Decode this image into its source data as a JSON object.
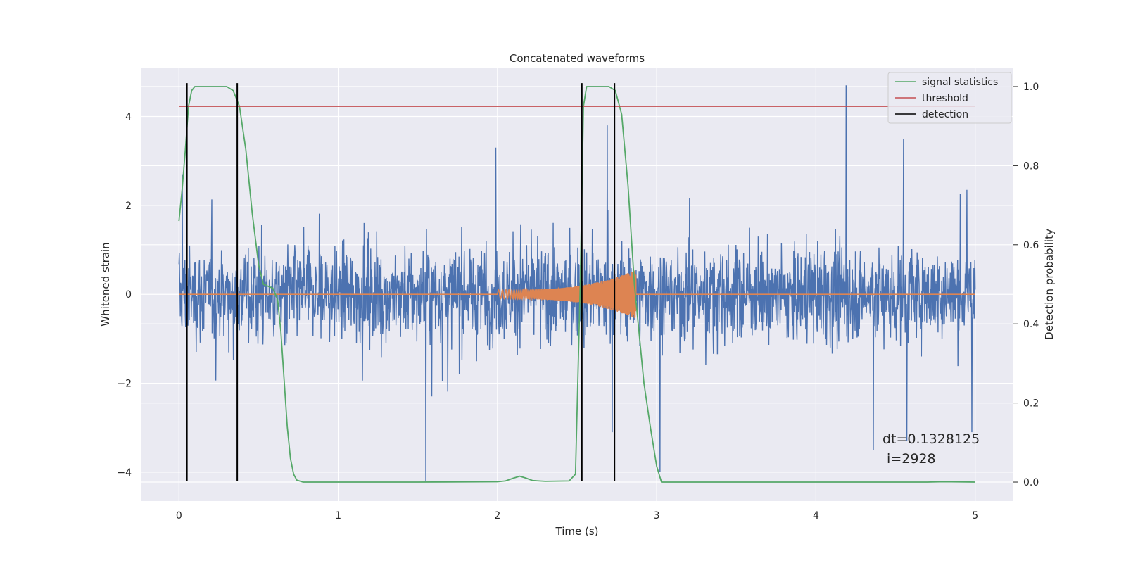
{
  "chart_data": {
    "type": "line",
    "title": "Concatenated waveforms",
    "xlabel": "Time (s)",
    "ylabel": "Whitened strain",
    "ylabel_right": "Detection probability",
    "xlim": [
      -0.24,
      5.24
    ],
    "ylim": [
      -4.65,
      5.1
    ],
    "ylim_right": [
      -0.048,
      1.048
    ],
    "x_ticks": [
      0,
      1,
      2,
      3,
      4,
      5
    ],
    "x_tick_labels": [
      "0",
      "1",
      "2",
      "3",
      "4",
      "5"
    ],
    "y_ticks": [
      -4,
      -2,
      0,
      2,
      4
    ],
    "y_tick_labels": [
      "−4",
      "−2",
      "0",
      "2",
      "4"
    ],
    "y_right_ticks": [
      0.0,
      0.2,
      0.4,
      0.6,
      0.8,
      1.0
    ],
    "y_right_tick_labels": [
      "0.0",
      "0.2",
      "0.4",
      "0.6",
      "0.8",
      "1.0"
    ],
    "grid": true,
    "legend_position": "top-right",
    "series": [
      {
        "kind": "noise",
        "axis": "left",
        "color": "#4c72b0",
        "x_range": [
          0,
          5
        ],
        "typical_range": [
          -2.4,
          2.6
        ],
        "spikes": [
          [
            0.02,
            2.7
          ],
          [
            1.55,
            -4.2
          ],
          [
            1.99,
            3.3
          ],
          [
            2.69,
            3.8
          ],
          [
            2.72,
            -3.1
          ],
          [
            3.02,
            -4.0
          ],
          [
            4.19,
            4.7
          ],
          [
            4.36,
            -3.5
          ],
          [
            4.55,
            3.5
          ],
          [
            4.57,
            -3.3
          ],
          [
            4.98,
            -3.1
          ]
        ]
      },
      {
        "kind": "chirp",
        "axis": "left",
        "color": "#dd8452",
        "x_range": [
          0,
          5
        ],
        "chirp_start": 2.0,
        "chirp_end": 2.87,
        "amplitude_start": 0.1,
        "amplitude_peak": 0.55
      },
      {
        "name": "signal statistics",
        "kind": "line",
        "axis": "right",
        "color": "#55a868",
        "x": [
          0.0,
          0.02,
          0.04,
          0.06,
          0.08,
          0.1,
          0.14,
          0.2,
          0.3,
          0.34,
          0.38,
          0.42,
          0.46,
          0.5,
          0.53,
          0.56,
          0.59,
          0.62,
          0.64,
          0.66,
          0.68,
          0.7,
          0.72,
          0.74,
          0.78,
          1.0,
          1.5,
          2.0,
          2.05,
          2.1,
          2.14,
          2.18,
          2.22,
          2.3,
          2.45,
          2.49,
          2.52,
          2.54,
          2.56,
          2.6,
          2.7,
          2.74,
          2.78,
          2.82,
          2.86,
          2.92,
          2.96,
          3.0,
          3.03,
          3.1,
          4.0,
          4.7,
          4.8,
          5.0
        ],
        "values": [
          0.66,
          0.74,
          0.84,
          0.95,
          0.99,
          1.0,
          1.0,
          1.0,
          1.0,
          0.99,
          0.95,
          0.84,
          0.68,
          0.55,
          0.5,
          0.495,
          0.49,
          0.46,
          0.38,
          0.26,
          0.14,
          0.06,
          0.02,
          0.005,
          0.0,
          0.0,
          0.0,
          0.001,
          0.003,
          0.01,
          0.015,
          0.01,
          0.004,
          0.002,
          0.003,
          0.02,
          0.5,
          0.95,
          1.0,
          1.0,
          1.0,
          0.99,
          0.93,
          0.75,
          0.5,
          0.25,
          0.14,
          0.04,
          0.0,
          0.0,
          0.0,
          0.0,
          0.001,
          0.0
        ]
      },
      {
        "name": "threshold",
        "kind": "hline",
        "axis": "right",
        "color": "#c44e52",
        "x_range": [
          0,
          5
        ],
        "value": 0.95
      },
      {
        "name": "detection",
        "kind": "vlines",
        "axis": "left",
        "color": "#000000",
        "x": [
          0.05,
          0.366,
          2.53,
          2.735
        ],
        "y_range": [
          -4.2,
          4.75
        ]
      }
    ],
    "annotation": {
      "line1": "dt=0.1328125",
      "line2": " i=2928",
      "x": 4.5,
      "y": -3.2
    }
  }
}
